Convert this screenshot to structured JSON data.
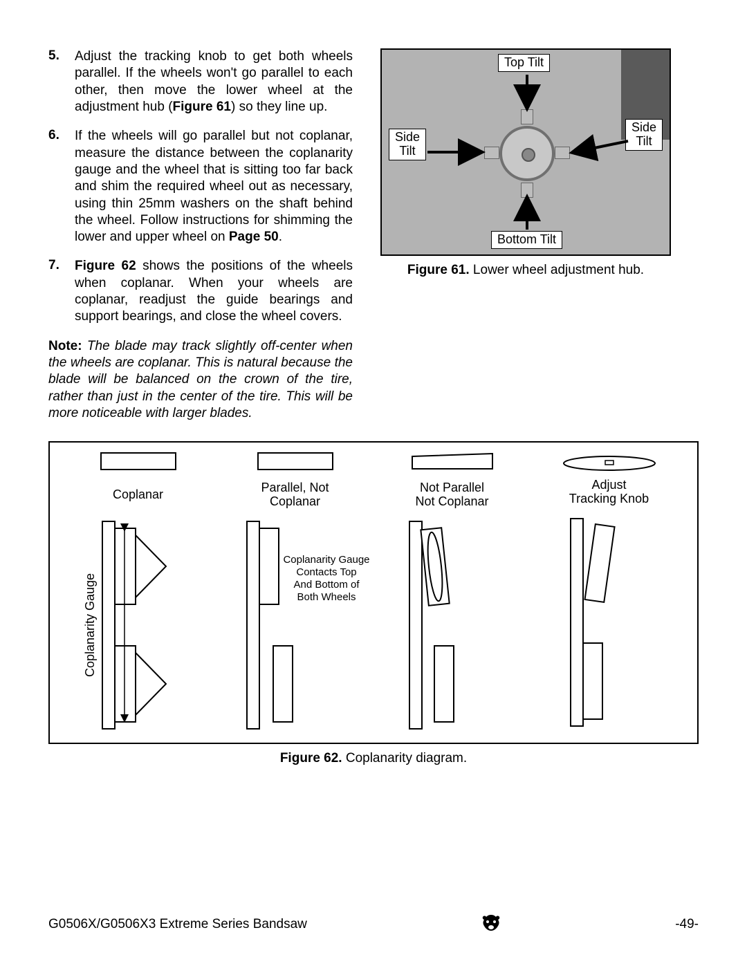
{
  "steps": [
    {
      "n": "5.",
      "html": "Adjust the tracking knob to get both wheels parallel. If the wheels won't go parallel to each other, then move the lower wheel at the adjustment hub (<b>Figure 61</b>) so they line up."
    },
    {
      "n": "6.",
      "html": "If the wheels will go parallel but not coplanar, measure the distance between the coplanarity gauge and the wheel that is sitting too far back and shim the required wheel out as necessary, using thin 25mm washers on the shaft behind the wheel. Follow instructions for shimming the lower and upper wheel  on <b>Page 50</b>."
    },
    {
      "n": "7.",
      "html": "<b>Figure 62</b> shows the positions of the wheels when coplanar. When your wheels are coplanar, readjust the guide bearings and support bearings, and close the wheel covers."
    }
  ],
  "note": {
    "label": "Note:",
    "text": "The blade may track slightly off-center when the wheels are coplanar. This is natural because the blade will be balanced on the crown of the tire, rather than just in the center of the tire. This will be more noticeable with larger blades."
  },
  "fig61": {
    "top": "Top Tilt",
    "bottom": "Bottom Tilt",
    "sideL": "Side\nTilt",
    "sideR": "Side\nTilt",
    "caption_b": "Figure 61.",
    "caption_t": " Lower wheel adjustment hub."
  },
  "fig62": {
    "cells": [
      {
        "label": "Coplanar"
      },
      {
        "label": "Parallel, Not\nCoplanar"
      },
      {
        "label": "Not Parallel\nNot Coplanar"
      },
      {
        "label": "Adjust\nTracking Knob"
      }
    ],
    "gauge_vert": "Coplanarity Gauge",
    "gauge_note": "Coplanarity Gauge\nContacts Top\nAnd Bottom of\nBoth Wheels",
    "caption_b": "Figure 62.",
    "caption_t": " Coplanarity diagram."
  },
  "footer": {
    "left": "G0506X/G0506X3 Extreme Series Bandsaw",
    "right": "-49-"
  },
  "colors": {
    "bg": "#ffffff",
    "stroke": "#000000",
    "photo_bg": "#b3b3b3"
  }
}
